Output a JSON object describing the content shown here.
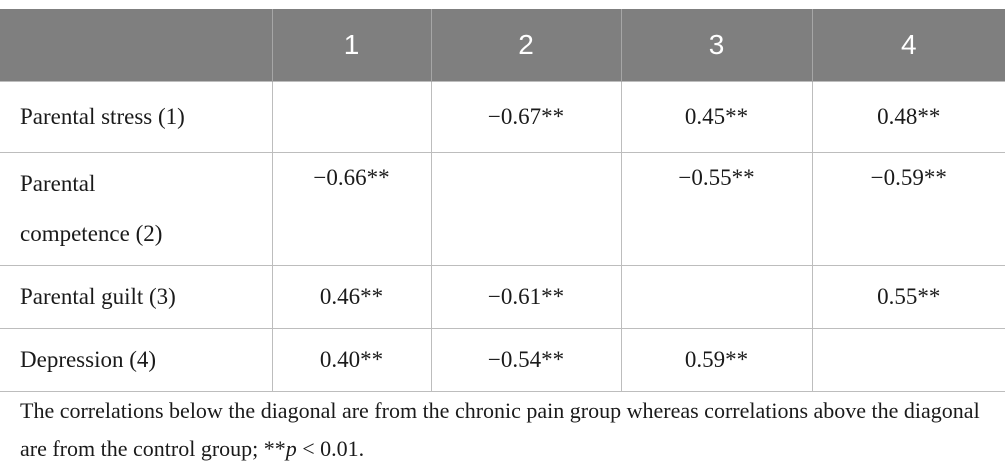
{
  "table": {
    "headers": [
      "",
      "1",
      "2",
      "3",
      "4"
    ],
    "rows": [
      {
        "label": "Parental stress (1)",
        "cells": [
          "",
          "−0.67**",
          "0.45**",
          "0.48**"
        ]
      },
      {
        "label_line1": "Parental",
        "label_line2": "competence (2)",
        "cells": [
          "−0.66**",
          "",
          "−0.55**",
          "−0.59**"
        ]
      },
      {
        "label": "Parental guilt (3)",
        "cells": [
          "0.46**",
          "−0.61**",
          "",
          "0.55**"
        ]
      },
      {
        "label": "Depression (4)",
        "cells": [
          "0.40**",
          "−0.54**",
          "0.59**",
          ""
        ]
      }
    ]
  },
  "footnote": {
    "text_before": "The correlations below the diagonal are from the chronic pain group whereas correlations above the diagonal are from the control group; **",
    "p_symbol": "p",
    "text_after": " < 0.01."
  }
}
